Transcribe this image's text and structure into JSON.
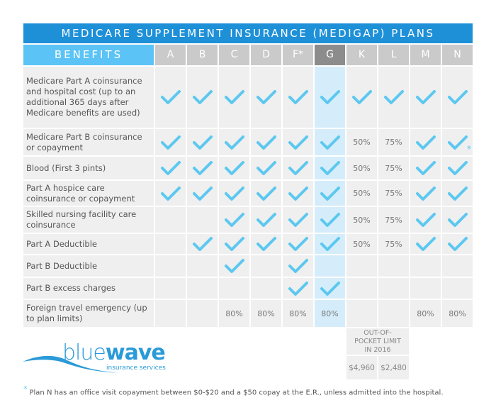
{
  "title": "MEDICARE SUPPLEMENT INSURANCE (MEDIGAP) PLANS",
  "benefits_header": "BENEFITS",
  "plans": [
    "A",
    "B",
    "C",
    "D",
    "F*",
    "G",
    "K",
    "L",
    "M",
    "N"
  ],
  "highlighted_plan": "G",
  "rows": [
    {
      "label": "Medicare Part A coinsurance and hospital cost (up to an additional 365 days after Medicare benefits are used)",
      "cells": [
        "check",
        "check",
        "check",
        "check",
        "check",
        "check",
        "check",
        "check",
        "check",
        "check"
      ]
    },
    {
      "label": "Medicare Part B coinsurance or copayment",
      "cells": [
        "check",
        "check",
        "check",
        "check",
        "check",
        "check",
        "50%",
        "75%",
        "check",
        "check*"
      ]
    },
    {
      "label": "Blood (First 3 pints)",
      "cells": [
        "check",
        "check",
        "check",
        "check",
        "check",
        "check",
        "50%",
        "75%",
        "check",
        "check"
      ]
    },
    {
      "label": "Part A hospice care coinsurance or copayment",
      "cells": [
        "check",
        "check",
        "check",
        "check",
        "check",
        "check",
        "50%",
        "75%",
        "check",
        "check"
      ]
    },
    {
      "label": "Skilled nursing facility care coinsurance",
      "cells": [
        "",
        "",
        "check",
        "check",
        "check",
        "check",
        "50%",
        "75%",
        "check",
        "check"
      ]
    },
    {
      "label": "Part A Deductible",
      "cells": [
        "",
        "check",
        "check",
        "check",
        "check",
        "check",
        "50%",
        "75%",
        "check",
        "check"
      ]
    },
    {
      "label": "Part B Deductible",
      "cells": [
        "",
        "",
        "check",
        "",
        "check",
        "",
        "",
        "",
        "",
        ""
      ]
    },
    {
      "label": "Part B excess charges",
      "cells": [
        "",
        "",
        "",
        "",
        "check",
        "check",
        "",
        "",
        "",
        ""
      ]
    },
    {
      "label": "Foreign travel emergency (up to plan limits)",
      "cells": [
        "",
        "",
        "80%",
        "80%",
        "80%",
        "80%",
        "",
        "",
        "80%",
        "80%"
      ]
    }
  ],
  "out_of_pocket": {
    "label": "OUT-OF-POCKET LIMIT IN 2016",
    "K": "$4,960",
    "L": "$2,480"
  },
  "logo": {
    "text_light": "blue",
    "text_bold": "wave",
    "tagline": "insurance services"
  },
  "footnote": {
    "marker": "*",
    "text": "Plan N has an office visit copayment between $0-$20 and a $50 copay at the E.R., unless admitted into the hospital."
  },
  "colors": {
    "title_bar": "#1e90d8",
    "benefits_header": "#5cc3f6",
    "check": "#5cc8f0",
    "highlight_column": "#d5edfa",
    "highlight_header": "#8c8c8c"
  }
}
